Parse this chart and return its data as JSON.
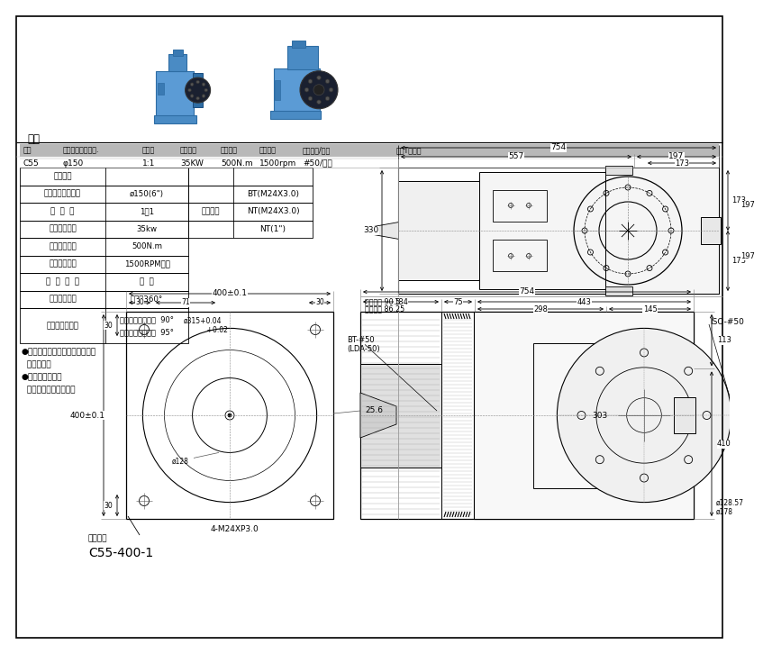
{
  "bg_color": "#ffffff",
  "title_section": "規格",
  "header_row": [
    "型號",
    "使用最大刀具直徑.",
    "減速比",
    "最大馬力",
    "最大扭力",
    "最高轉速",
    "主軸規格/轉向",
    "配件T型螺絲"
  ],
  "data_row": [
    "C55",
    "φ150",
    "1:1",
    "35KW",
    "500N.m",
    "1500rpm",
    "#50/正向",
    ""
  ],
  "table_left": [
    [
      "加工精度",
      ""
    ],
    [
      "使用最大刀具直徑",
      "ø150(6\")"
    ],
    [
      "減  速  比",
      "1：1"
    ],
    [
      "使用最大馬力",
      "35kw"
    ],
    [
      "使用最大扭矩",
      "500N.m"
    ],
    [
      "最高使用轉速",
      "1500RPM以下"
    ],
    [
      "主  軸  轉  向",
      "正  轉"
    ],
    [
      "本體旋轉角度",
      "可旋轉360°"
    ],
    [
      "搖擺頭旋轉角度",
      "工作角度向上旋轉  90°\n容許角度向上旋轉  95°"
    ]
  ],
  "table_right_header": "拉桿螺頂",
  "table_right_rows": [
    "BT(M24X3.0)",
    "NT(M24X3.0)",
    "NT(1\")"
  ],
  "notes": [
    "●本產品獲准臺灣及大陸多項專利",
    "  仿冒必究！",
    "●承接介面客製化",
    "  請提供相關設計尺寸！"
  ],
  "diagram_label": "C55-400-1",
  "interface_label": "承接介面",
  "bt_label": "BT-#50\n(LDA-50)",
  "iso_label": "ISO-#50",
  "spindle_length": "裝配長度 90.5",
  "use_length": "使用長度 86.25"
}
